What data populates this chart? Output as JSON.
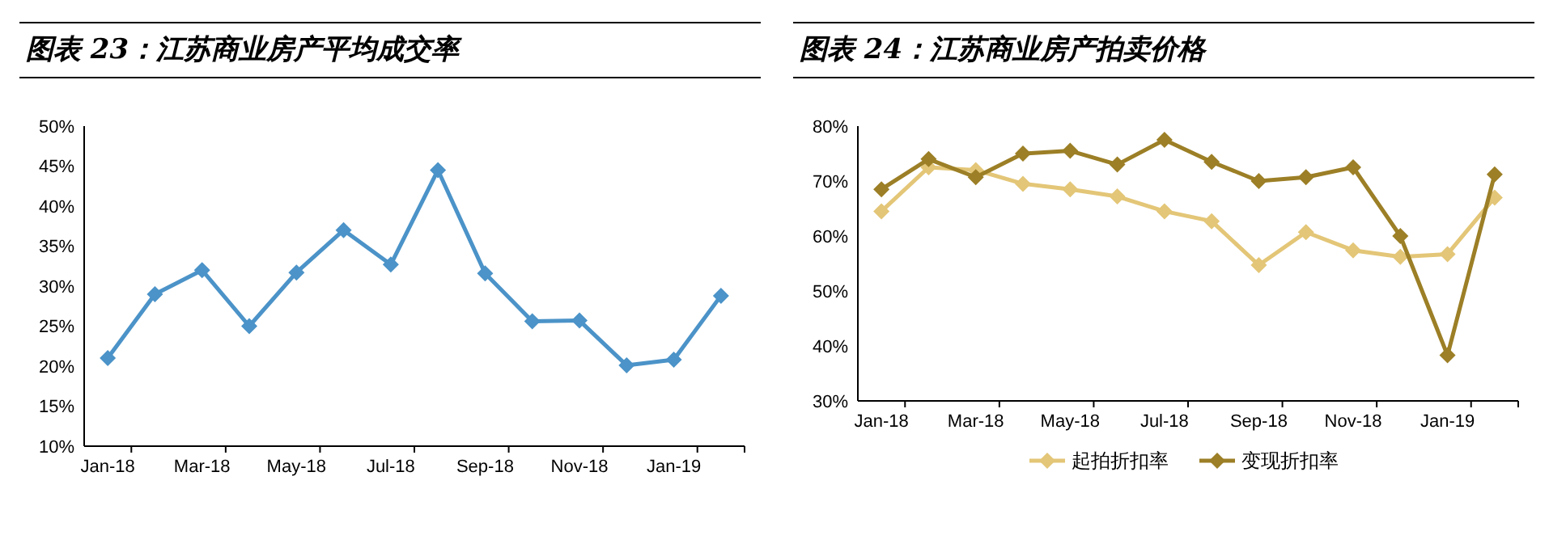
{
  "chart_data": [
    {
      "type": "line",
      "title": "图表 23：江苏商业房产平均成交率",
      "categories": [
        "Jan-18",
        null,
        "Mar-18",
        null,
        "May-18",
        null,
        "Jul-18",
        null,
        "Sep-18",
        null,
        "Nov-18",
        null,
        "Jan-19",
        null
      ],
      "series": [
        {
          "color": "#4b93c8",
          "values": [
            21,
            29,
            32,
            25,
            31.7,
            37,
            32.7,
            44.5,
            31.6,
            25.6,
            25.7,
            20.1,
            20.8,
            28.8
          ]
        }
      ],
      "ylim": [
        10,
        50
      ],
      "yticks": [
        {
          "value": 10,
          "label": "10%"
        },
        {
          "value": 15,
          "label": "15%"
        },
        {
          "value": 20,
          "label": "20%"
        },
        {
          "value": 25,
          "label": "25%"
        },
        {
          "value": 30,
          "label": "30%"
        },
        {
          "value": 35,
          "label": "35%"
        },
        {
          "value": 40,
          "label": "40%"
        },
        {
          "value": 45,
          "label": "45%"
        },
        {
          "value": 50,
          "label": "50%"
        }
      ],
      "marker": "diamond",
      "grid": false,
      "legend": false
    },
    {
      "type": "line",
      "title": "图表 24：江苏商业房产拍卖价格",
      "categories": [
        "Jan-18",
        null,
        "Mar-18",
        null,
        "May-18",
        null,
        "Jul-18",
        null,
        "Sep-18",
        null,
        "Nov-18",
        null,
        "Jan-19",
        null
      ],
      "series": [
        {
          "name": "起拍折扣率",
          "color": "#e3c677",
          "values": [
            64.5,
            72.5,
            72,
            69.5,
            68.5,
            67.2,
            64.5,
            62.7,
            54.7,
            60.7,
            57.4,
            56.2,
            56.7,
            67
          ]
        },
        {
          "name": "变现折扣率",
          "color": "#9c7f26",
          "values": [
            68.5,
            74,
            70.7,
            75,
            75.5,
            73,
            77.5,
            73.5,
            70,
            70.7,
            72.5,
            60,
            38.3,
            71.2
          ]
        }
      ],
      "ylim": [
        30,
        80
      ],
      "yticks": [
        {
          "value": 30,
          "label": "30%"
        },
        {
          "value": 40,
          "label": "40%"
        },
        {
          "value": 50,
          "label": "50%"
        },
        {
          "value": 60,
          "label": "60%"
        },
        {
          "value": 70,
          "label": "70%"
        },
        {
          "value": 80,
          "label": "80%"
        }
      ],
      "marker": "diamond",
      "grid": false,
      "legend": "bottom"
    }
  ]
}
